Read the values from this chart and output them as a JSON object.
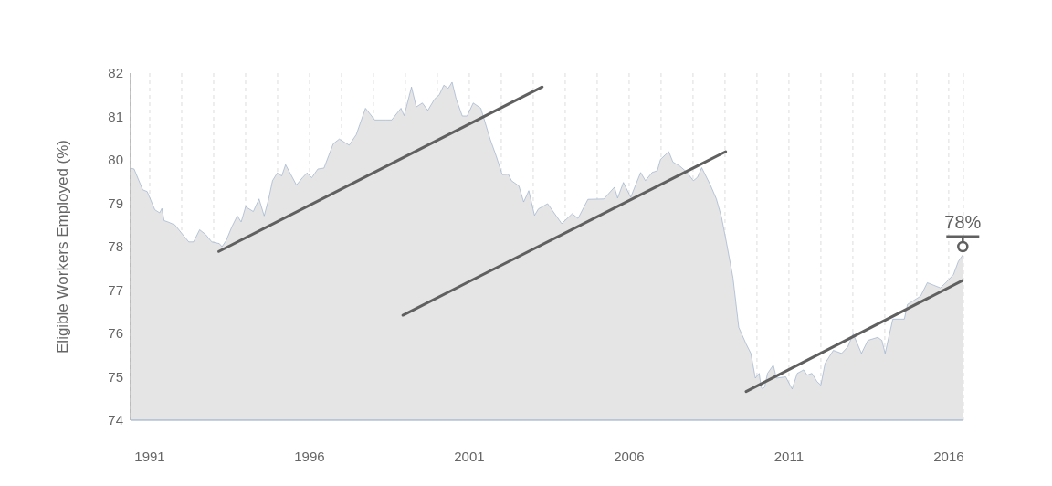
{
  "chart_data": {
    "type": "area",
    "ylabel": "Eligible Workers Employed (%)",
    "xlim": [
      1990.4,
      2016.46
    ],
    "ylim": [
      74,
      82
    ],
    "yticks": [
      74,
      75,
      76,
      77,
      78,
      79,
      80,
      81,
      82
    ],
    "xticks": [
      {
        "value": 1991,
        "label": "1991"
      },
      {
        "value": 1992,
        "label": null
      },
      {
        "value": 1993,
        "label": null
      },
      {
        "value": 1994,
        "label": null
      },
      {
        "value": 1995,
        "label": null
      },
      {
        "value": 1996,
        "label": "1996"
      },
      {
        "value": 1997,
        "label": null
      },
      {
        "value": 1998,
        "label": null
      },
      {
        "value": 1999,
        "label": null
      },
      {
        "value": 2000,
        "label": null
      },
      {
        "value": 2001,
        "label": "2001"
      },
      {
        "value": 2002,
        "label": null
      },
      {
        "value": 2003,
        "label": null
      },
      {
        "value": 2004,
        "label": null
      },
      {
        "value": 2005,
        "label": null
      },
      {
        "value": 2006,
        "label": "2006"
      },
      {
        "value": 2007,
        "label": null
      },
      {
        "value": 2008,
        "label": null
      },
      {
        "value": 2009,
        "label": null
      },
      {
        "value": 2010,
        "label": null
      },
      {
        "value": 2011,
        "label": "2011"
      },
      {
        "value": 2012,
        "label": null
      },
      {
        "value": 2013,
        "label": null
      },
      {
        "value": 2014,
        "label": null
      },
      {
        "value": 2015,
        "label": null
      },
      {
        "value": 2016,
        "label": "2016"
      }
    ],
    "grid": "x",
    "annotations": [
      {
        "text": "78%",
        "x": 2016.44,
        "y": 78
      }
    ],
    "series": [
      {
        "color": "#8ea6c6",
        "x": [
          1990.4,
          1990.51,
          1990.78,
          1990.92,
          1991.16,
          1991.31,
          1991.38,
          1991.45,
          1991.57,
          1991.79,
          1992.03,
          1992.22,
          1992.37,
          1992.56,
          1992.75,
          1992.94,
          1993.18,
          1993.26,
          1993.39,
          1993.57,
          1993.74,
          1993.86,
          1994.0,
          1994.24,
          1994.42,
          1994.58,
          1994.72,
          1994.84,
          1994.99,
          1995.13,
          1995.25,
          1995.59,
          1995.78,
          1995.92,
          1996.07,
          1996.26,
          1996.45,
          1996.74,
          1996.93,
          1997.24,
          1997.46,
          1997.75,
          1998.04,
          1998.38,
          1998.57,
          1998.86,
          1998.96,
          1999.19,
          1999.34,
          1999.53,
          1999.7,
          1999.91,
          2000.06,
          2000.2,
          2000.34,
          2000.46,
          2000.59,
          2000.78,
          2000.93,
          2001.12,
          2001.36,
          2001.65,
          2001.84,
          2002.03,
          2002.22,
          2002.32,
          2002.55,
          2002.7,
          2002.86,
          2003.04,
          2003.16,
          2003.45,
          2003.89,
          2004.22,
          2004.4,
          2004.71,
          2005.21,
          2005.54,
          2005.64,
          2005.82,
          2006.05,
          2006.36,
          2006.51,
          2006.72,
          2006.88,
          2006.98,
          2007.24,
          2007.37,
          2007.58,
          2007.8,
          2008.01,
          2008.14,
          2008.27,
          2008.53,
          2008.73,
          2008.89,
          2009.04,
          2009.25,
          2009.43,
          2009.66,
          2009.81,
          2009.95,
          2010.07,
          2010.13,
          2010.18,
          2010.24,
          2010.33,
          2010.51,
          2010.61,
          2010.9,
          2011.1,
          2011.26,
          2011.46,
          2011.57,
          2011.72,
          2011.88,
          2012.0,
          2012.13,
          2012.39,
          2012.65,
          2012.84,
          2013.01,
          2013.27,
          2013.47,
          2013.78,
          2013.91,
          2014.01,
          2014.25,
          2014.61,
          2014.71,
          2015.12,
          2015.33,
          2015.74,
          2015.95,
          2016.15,
          2016.3,
          2016.44
        ],
        "values": [
          79.81,
          79.79,
          79.31,
          79.27,
          78.85,
          78.78,
          78.88,
          78.6,
          78.57,
          78.5,
          78.28,
          78.11,
          78.11,
          78.39,
          78.28,
          78.11,
          78.07,
          78.0,
          78.14,
          78.46,
          78.71,
          78.57,
          78.92,
          78.81,
          79.1,
          78.71,
          79.1,
          79.52,
          79.7,
          79.63,
          79.89,
          79.42,
          79.59,
          79.7,
          79.59,
          79.79,
          79.81,
          80.37,
          80.48,
          80.34,
          80.58,
          81.19,
          80.92,
          80.92,
          80.92,
          81.19,
          81.02,
          81.68,
          81.22,
          81.31,
          81.14,
          81.4,
          81.5,
          81.72,
          81.65,
          81.79,
          81.4,
          81.01,
          81.01,
          81.31,
          81.19,
          80.48,
          80.09,
          79.66,
          79.67,
          79.52,
          79.4,
          79.03,
          79.29,
          78.72,
          78.87,
          78.99,
          78.53,
          78.76,
          78.65,
          79.09,
          79.1,
          79.37,
          79.12,
          79.48,
          79.14,
          79.71,
          79.52,
          79.71,
          79.75,
          80.01,
          80.19,
          79.95,
          79.86,
          79.72,
          79.52,
          79.6,
          79.82,
          79.44,
          79.1,
          78.68,
          78.12,
          77.28,
          76.14,
          75.76,
          75.54,
          74.97,
          75.08,
          74.76,
          74.72,
          74.77,
          75.08,
          75.27,
          74.97,
          75.0,
          74.72,
          75.08,
          75.16,
          75.04,
          75.08,
          74.89,
          74.81,
          75.31,
          75.61,
          75.54,
          75.69,
          75.99,
          75.54,
          75.84,
          75.91,
          75.84,
          75.54,
          76.33,
          76.33,
          76.67,
          76.86,
          77.17,
          77.05,
          77.2,
          77.36,
          77.66,
          77.81
        ]
      },
      {
        "type": "line",
        "color": "#606060",
        "x": [
          1993.16,
          2003.28
        ],
        "values": [
          77.89,
          81.68
        ]
      },
      {
        "type": "line",
        "color": "#606060",
        "x": [
          1998.92,
          2009.02
        ],
        "values": [
          76.42,
          80.19
        ]
      },
      {
        "type": "line",
        "color": "#606060",
        "x": [
          2009.66,
          2016.46
        ],
        "values": [
          74.66,
          77.23
        ]
      }
    ]
  }
}
